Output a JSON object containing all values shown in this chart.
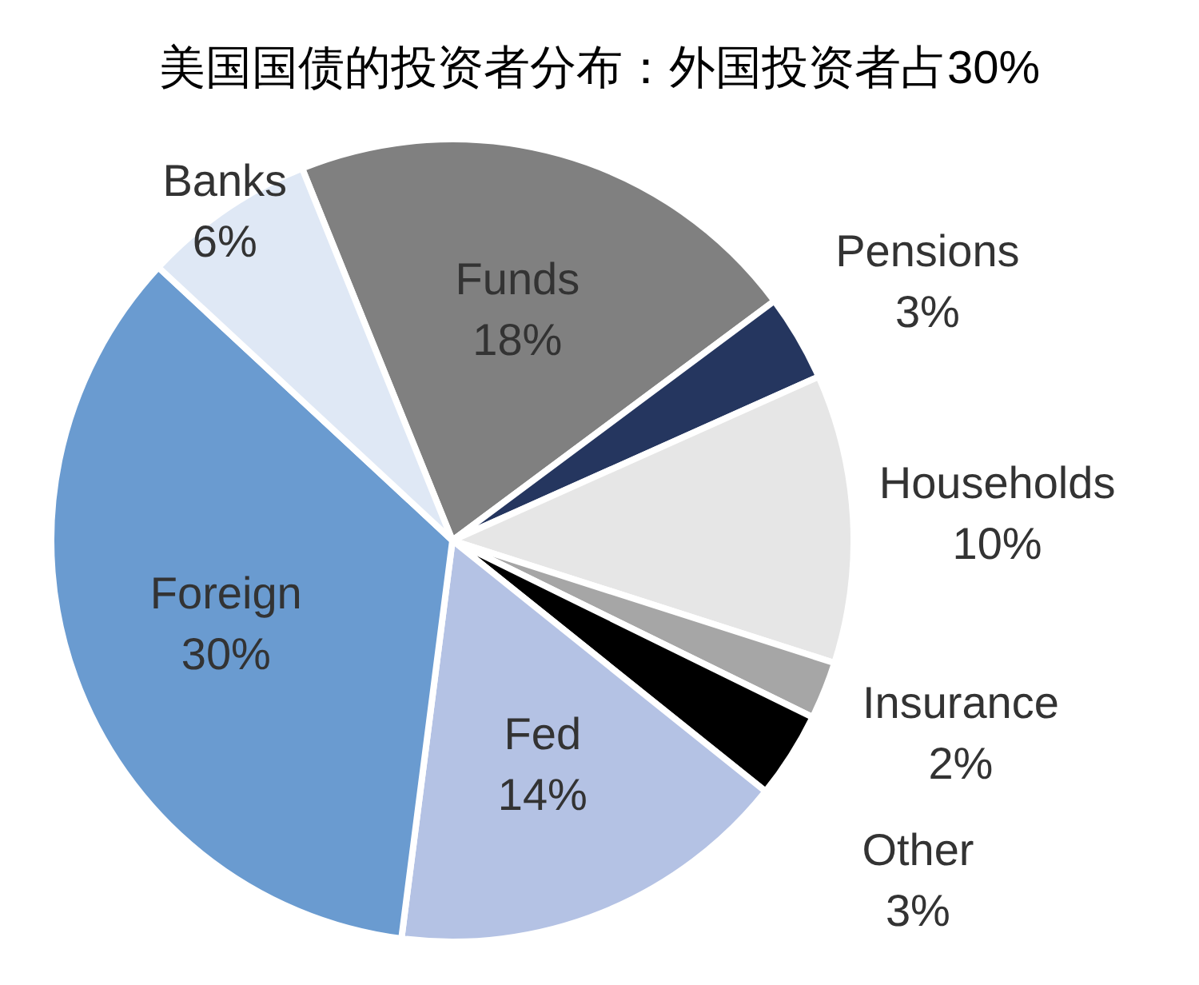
{
  "chart_data": {
    "type": "pie",
    "title": "美国国债的投资者分布：外国投资者占30%",
    "categories": [
      "Funds",
      "Pensions",
      "Households",
      "Insurance",
      "Other",
      "Fed",
      "Foreign",
      "Banks"
    ],
    "values": [
      18,
      3,
      10,
      2,
      3,
      14,
      30,
      6
    ],
    "value_labels": [
      "18%",
      "3%",
      "10%",
      "2%",
      "3%",
      "14%",
      "30%",
      "6%"
    ],
    "colors": [
      "#808080",
      "#25365f",
      "#e6e6e6",
      "#a6a6a6",
      "#000000",
      "#b4c2e4",
      "#6a9bd0",
      "#dfe8f5"
    ]
  }
}
